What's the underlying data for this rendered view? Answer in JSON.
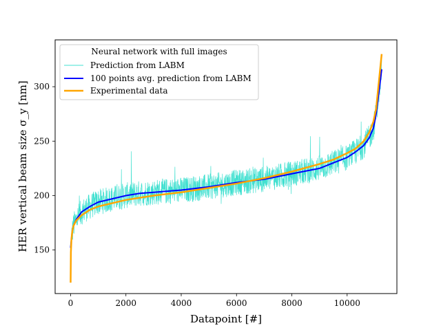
{
  "chart_data": {
    "type": "line",
    "title": "",
    "xlabel": "Datapoint [#]",
    "ylabel": "HER vertical beam size σ_y [nm]",
    "xlim": [
      -560,
      11800
    ],
    "ylim": [
      110,
      343
    ],
    "xticks": [
      0,
      2000,
      4000,
      6000,
      8000,
      10000
    ],
    "yticks": [
      150,
      200,
      250,
      300
    ],
    "xtick_labels": [
      "0",
      "2000",
      "4000",
      "6000",
      "8000",
      "10000"
    ],
    "ytick_labels": [
      "150",
      "200",
      "250",
      "300"
    ],
    "grid": false,
    "legend": {
      "position": "top-left",
      "title": "Neural network with full images",
      "entries": [
        "Prediction from LABM",
        "100 points avg. prediction from LABM",
        "Experimental data"
      ]
    },
    "colors": {
      "prediction": "#40e0d0",
      "average": "#0000ff",
      "experimental": "#ffa500"
    },
    "series": [
      {
        "name": "Experimental data",
        "x": [
          0,
          10,
          30,
          60,
          100,
          200,
          400,
          700,
          1000,
          1500,
          2000,
          2500,
          3000,
          4000,
          5000,
          6000,
          7000,
          8000,
          9000,
          9500,
          10000,
          10300,
          10600,
          10800,
          10950,
          11050,
          11150,
          11250
        ],
        "values": [
          120,
          148,
          160,
          167,
          172,
          177,
          182,
          187,
          190,
          193,
          196,
          198,
          200,
          203,
          207,
          211,
          216,
          222,
          229,
          233,
          239,
          243,
          250,
          258,
          268,
          280,
          305,
          330
        ]
      },
      {
        "name": "100 points avg. prediction from LABM",
        "x": [
          0,
          30,
          60,
          100,
          200,
          400,
          700,
          1000,
          1500,
          2000,
          2500,
          3000,
          4000,
          5000,
          6000,
          7000,
          8000,
          9000,
          9500,
          10000,
          10300,
          10600,
          10800,
          10950,
          11050,
          11150,
          11250
        ],
        "values": [
          152,
          160,
          167,
          172,
          178,
          185,
          190,
          194,
          197,
          200,
          202,
          203,
          205,
          208,
          212,
          215,
          220,
          225,
          230,
          235,
          240,
          246,
          253,
          262,
          275,
          295,
          316
        ]
      },
      {
        "name": "Prediction from LABM",
        "x": [
          0,
          30,
          60,
          100,
          200,
          400,
          700,
          1000,
          1500,
          2000,
          2500,
          3000,
          4000,
          5000,
          6000,
          7000,
          8000,
          9000,
          9500,
          10000,
          10300,
          10600,
          10800,
          10950,
          11050,
          11150,
          11250
        ],
        "values": [
          152,
          160,
          167,
          172,
          178,
          185,
          190,
          194,
          197,
          200,
          202,
          203,
          205,
          208,
          212,
          215,
          220,
          225,
          230,
          235,
          240,
          246,
          253,
          262,
          275,
          295,
          316
        ],
        "noise_spread": 12,
        "max_value": 335,
        "min_value": 150
      }
    ]
  }
}
